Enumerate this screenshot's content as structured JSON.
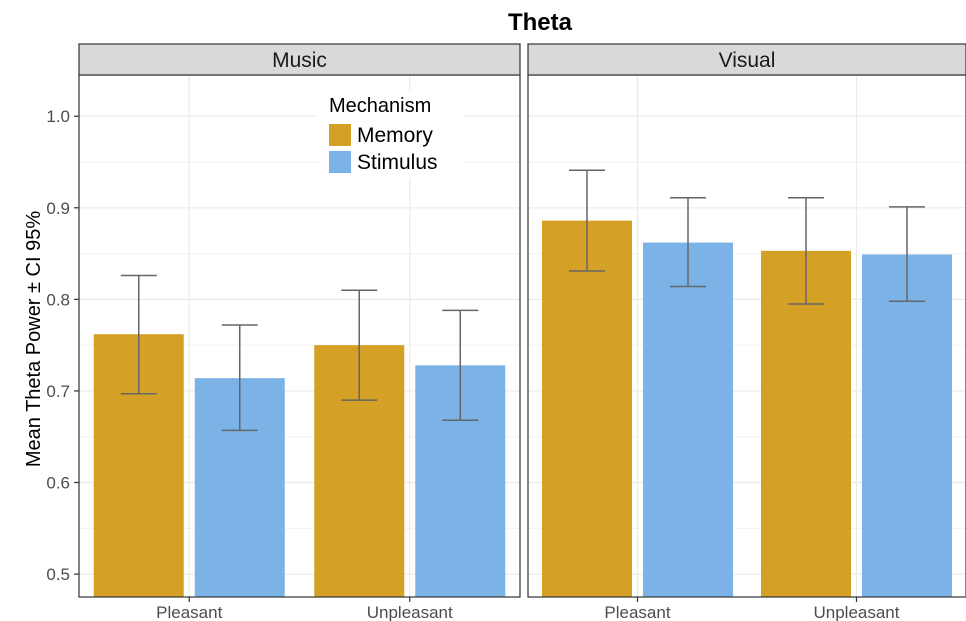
{
  "chart_data": {
    "type": "bar",
    "title": "Theta",
    "ylabel": "Mean Theta Power ± CI 95%",
    "xlabel": "",
    "ylim": [
      0.475,
      1.045
    ],
    "yticks": [
      "0.5",
      "0.6",
      "0.7",
      "0.8",
      "0.9",
      "1.0"
    ],
    "grid": true,
    "categories": [
      "Pleasant",
      "Unpleasant"
    ],
    "legend": {
      "title": "Mechanism",
      "placement": "inside top of first panel",
      "entries": [
        "Memory",
        "Stimulus"
      ]
    },
    "colors": {
      "Memory": "#D4A026",
      "Stimulus": "#7BB3E6",
      "errorbar": "#666666"
    },
    "panels": [
      {
        "name": "Music",
        "series": [
          {
            "name": "Memory",
            "values": [
              0.762,
              0.75
            ],
            "ci_low": [
              0.697,
              0.69
            ],
            "ci_high": [
              0.826,
              0.81
            ]
          },
          {
            "name": "Stimulus",
            "values": [
              0.714,
              0.728
            ],
            "ci_low": [
              0.657,
              0.668
            ],
            "ci_high": [
              0.772,
              0.788
            ]
          }
        ]
      },
      {
        "name": "Visual",
        "series": [
          {
            "name": "Memory",
            "values": [
              0.886,
              0.853
            ],
            "ci_low": [
              0.831,
              0.795
            ],
            "ci_high": [
              0.941,
              0.911
            ]
          },
          {
            "name": "Stimulus",
            "values": [
              0.862,
              0.849
            ],
            "ci_low": [
              0.814,
              0.798
            ],
            "ci_high": [
              0.911,
              0.901
            ]
          }
        ]
      }
    ]
  }
}
